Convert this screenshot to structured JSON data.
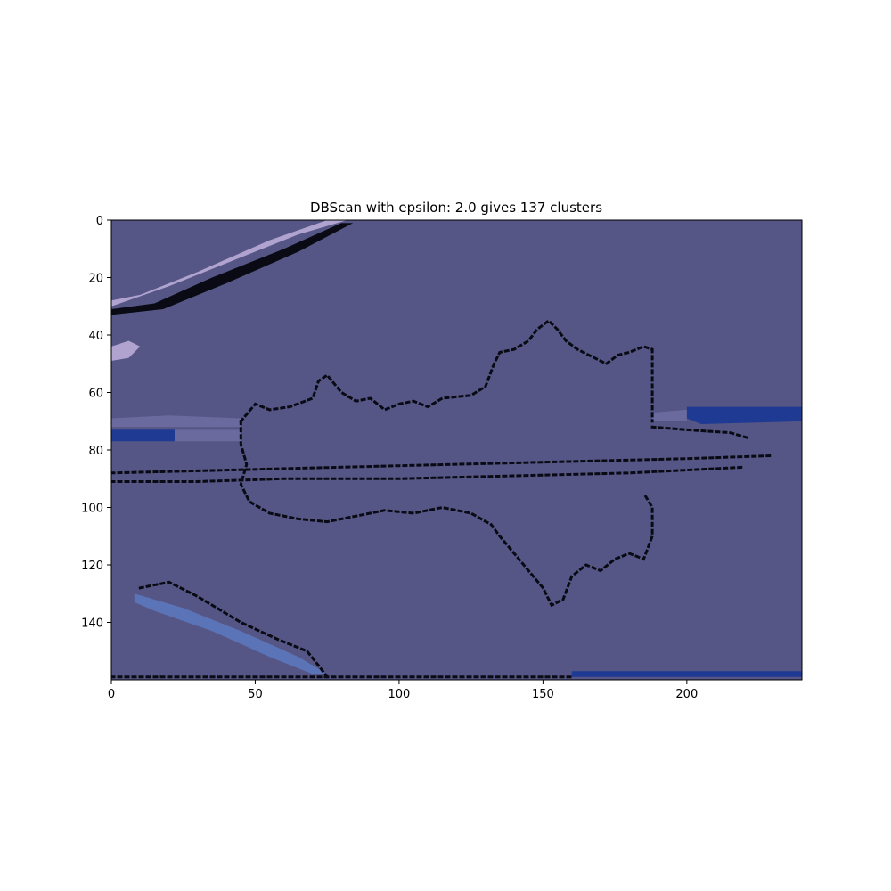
{
  "chart_data": {
    "type": "heatmap",
    "title": "DBScan with epsilon: 2.0 gives 137 clusters",
    "xlabel": "",
    "ylabel": "",
    "xlim": [
      0,
      240
    ],
    "ylim": [
      160,
      0
    ],
    "x_ticks": [
      0,
      50,
      100,
      150,
      200
    ],
    "y_ticks": [
      0,
      20,
      40,
      60,
      80,
      100,
      120,
      140
    ],
    "grid": false,
    "colors": {
      "background_cluster": "#555685",
      "noise": "#0a0a14",
      "lavender_cluster": "#b0a3cf",
      "blue_cluster": "#1f3a93",
      "slate_cluster": "#5b74b8",
      "mid_cluster": "#6a6a9e"
    },
    "regions": [
      {
        "name": "top-left streak",
        "color": "lavender_cluster",
        "points": [
          [
            0,
            30
          ],
          [
            20,
            23
          ],
          [
            40,
            15
          ],
          [
            65,
            5
          ],
          [
            82,
            0
          ],
          [
            75,
            0
          ],
          [
            55,
            7
          ],
          [
            30,
            18
          ],
          [
            10,
            26
          ],
          [
            0,
            28
          ]
        ]
      },
      {
        "name": "top-left noise band",
        "color": "noise",
        "points": [
          [
            0,
            31
          ],
          [
            15,
            29
          ],
          [
            35,
            20
          ],
          [
            60,
            10
          ],
          [
            80,
            1
          ],
          [
            84,
            1
          ],
          [
            65,
            11
          ],
          [
            40,
            22
          ],
          [
            18,
            31
          ],
          [
            0,
            33
          ]
        ]
      },
      {
        "name": "left small patch",
        "color": "lavender_cluster",
        "points": [
          [
            0,
            44
          ],
          [
            6,
            42
          ],
          [
            10,
            44
          ],
          [
            6,
            48
          ],
          [
            0,
            49
          ]
        ]
      },
      {
        "name": "left band upper",
        "color": "mid_cluster",
        "points": [
          [
            0,
            69
          ],
          [
            20,
            68
          ],
          [
            45,
            69
          ],
          [
            45,
            72
          ],
          [
            20,
            72
          ],
          [
            0,
            72
          ]
        ]
      },
      {
        "name": "left band lower",
        "color": "blue_cluster",
        "points": [
          [
            0,
            73
          ],
          [
            22,
            73
          ],
          [
            22,
            77
          ],
          [
            0,
            77
          ]
        ]
      },
      {
        "name": "left band gray",
        "color": "mid_cluster",
        "points": [
          [
            22,
            73
          ],
          [
            45,
            73
          ],
          [
            45,
            77
          ],
          [
            22,
            77
          ]
        ]
      },
      {
        "name": "bottom-left streak",
        "color": "slate_cluster",
        "points": [
          [
            8,
            130
          ],
          [
            25,
            135
          ],
          [
            45,
            143
          ],
          [
            65,
            152
          ],
          [
            75,
            158
          ],
          [
            70,
            158
          ],
          [
            55,
            152
          ],
          [
            35,
            143
          ],
          [
            15,
            136
          ],
          [
            8,
            133
          ]
        ]
      },
      {
        "name": "right band",
        "color": "blue_cluster",
        "points": [
          [
            200,
            65
          ],
          [
            240,
            65
          ],
          [
            240,
            70
          ],
          [
            205,
            71
          ],
          [
            200,
            69
          ]
        ]
      },
      {
        "name": "right band mid",
        "color": "mid_cluster",
        "points": [
          [
            188,
            67
          ],
          [
            200,
            66
          ],
          [
            200,
            70
          ],
          [
            188,
            70
          ]
        ]
      },
      {
        "name": "bottom strip",
        "color": "blue_cluster",
        "points": [
          [
            160,
            157
          ],
          [
            240,
            157
          ],
          [
            240,
            159
          ],
          [
            160,
            159
          ]
        ]
      }
    ],
    "noise_paths": [
      [
        [
          45,
          70
        ],
        [
          45,
          78
        ],
        [
          47,
          85
        ],
        [
          45,
          92
        ],
        [
          48,
          98
        ],
        [
          55,
          102
        ],
        [
          65,
          104
        ],
        [
          75,
          105
        ],
        [
          85,
          103
        ],
        [
          95,
          101
        ],
        [
          105,
          102
        ],
        [
          115,
          100
        ],
        [
          125,
          102
        ],
        [
          132,
          106
        ],
        [
          135,
          110
        ],
        [
          140,
          116
        ],
        [
          145,
          122
        ],
        [
          150,
          128
        ],
        [
          153,
          134
        ],
        [
          157,
          132
        ],
        [
          160,
          124
        ],
        [
          165,
          120
        ],
        [
          170,
          122
        ],
        [
          175,
          118
        ],
        [
          180,
          116
        ],
        [
          185,
          118
        ],
        [
          188,
          110
        ],
        [
          188,
          100
        ],
        [
          185,
          95
        ]
      ],
      [
        [
          45,
          70
        ],
        [
          50,
          64
        ],
        [
          55,
          66
        ],
        [
          62,
          65
        ],
        [
          70,
          62
        ],
        [
          72,
          56
        ],
        [
          75,
          54
        ],
        [
          80,
          60
        ],
        [
          85,
          63
        ],
        [
          90,
          62
        ],
        [
          95,
          66
        ],
        [
          100,
          64
        ],
        [
          105,
          63
        ],
        [
          110,
          65
        ],
        [
          115,
          62
        ],
        [
          125,
          61
        ],
        [
          130,
          58
        ],
        [
          133,
          50
        ],
        [
          135,
          46
        ],
        [
          140,
          45
        ],
        [
          145,
          42
        ],
        [
          148,
          38
        ],
        [
          152,
          35
        ],
        [
          155,
          38
        ],
        [
          158,
          42
        ],
        [
          162,
          45
        ],
        [
          168,
          48
        ],
        [
          172,
          50
        ],
        [
          176,
          47
        ],
        [
          180,
          46
        ],
        [
          185,
          44
        ],
        [
          188,
          45
        ],
        [
          188,
          52
        ],
        [
          188,
          60
        ],
        [
          188,
          70
        ]
      ],
      [
        [
          0,
          88
        ],
        [
          40,
          87
        ],
        [
          80,
          86
        ],
        [
          120,
          85
        ],
        [
          160,
          84
        ],
        [
          200,
          83
        ],
        [
          230,
          82
        ]
      ],
      [
        [
          0,
          91
        ],
        [
          30,
          91
        ],
        [
          60,
          90
        ],
        [
          100,
          90
        ],
        [
          140,
          89
        ],
        [
          180,
          88
        ],
        [
          220,
          86
        ]
      ],
      [
        [
          188,
          72
        ],
        [
          200,
          73
        ],
        [
          215,
          74
        ],
        [
          222,
          76
        ]
      ],
      [
        [
          10,
          128
        ],
        [
          20,
          126
        ],
        [
          30,
          131
        ],
        [
          45,
          140
        ],
        [
          58,
          146
        ],
        [
          68,
          150
        ],
        [
          72,
          155
        ],
        [
          75,
          159
        ]
      ],
      [
        [
          0,
          159
        ],
        [
          40,
          159
        ],
        [
          80,
          159
        ],
        [
          120,
          159
        ],
        [
          160,
          159
        ]
      ]
    ]
  }
}
